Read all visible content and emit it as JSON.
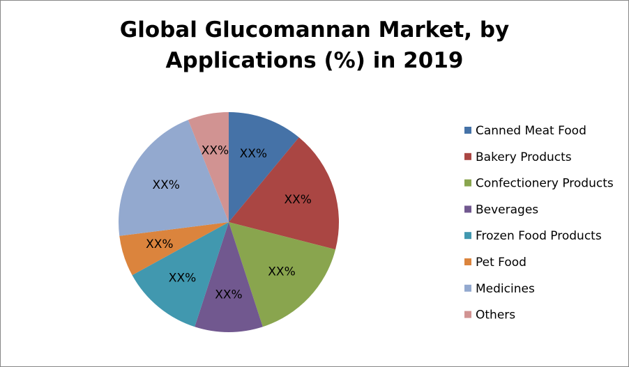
{
  "chart_data": {
    "type": "pie",
    "title": "Global Glucomannan Market, by Applications (%) in 2019",
    "categories": [
      "Canned Meat Food",
      "Bakery Products",
      "Confectionery Products",
      "Beverages",
      "Frozen Food Products",
      "Pet Food",
      "Medicines",
      "Others"
    ],
    "values": [
      11,
      18,
      16,
      10,
      12,
      6,
      21,
      6
    ],
    "value_labels": [
      "XX%",
      "XX%",
      "XX%",
      "XX%",
      "XX%",
      "XX%",
      "XX%",
      "XX%"
    ],
    "colors": [
      "#4572a7",
      "#aa4643",
      "#89a54e",
      "#71588f",
      "#4198af",
      "#db843d",
      "#93a9cf",
      "#d19392"
    ],
    "legend": "right"
  }
}
